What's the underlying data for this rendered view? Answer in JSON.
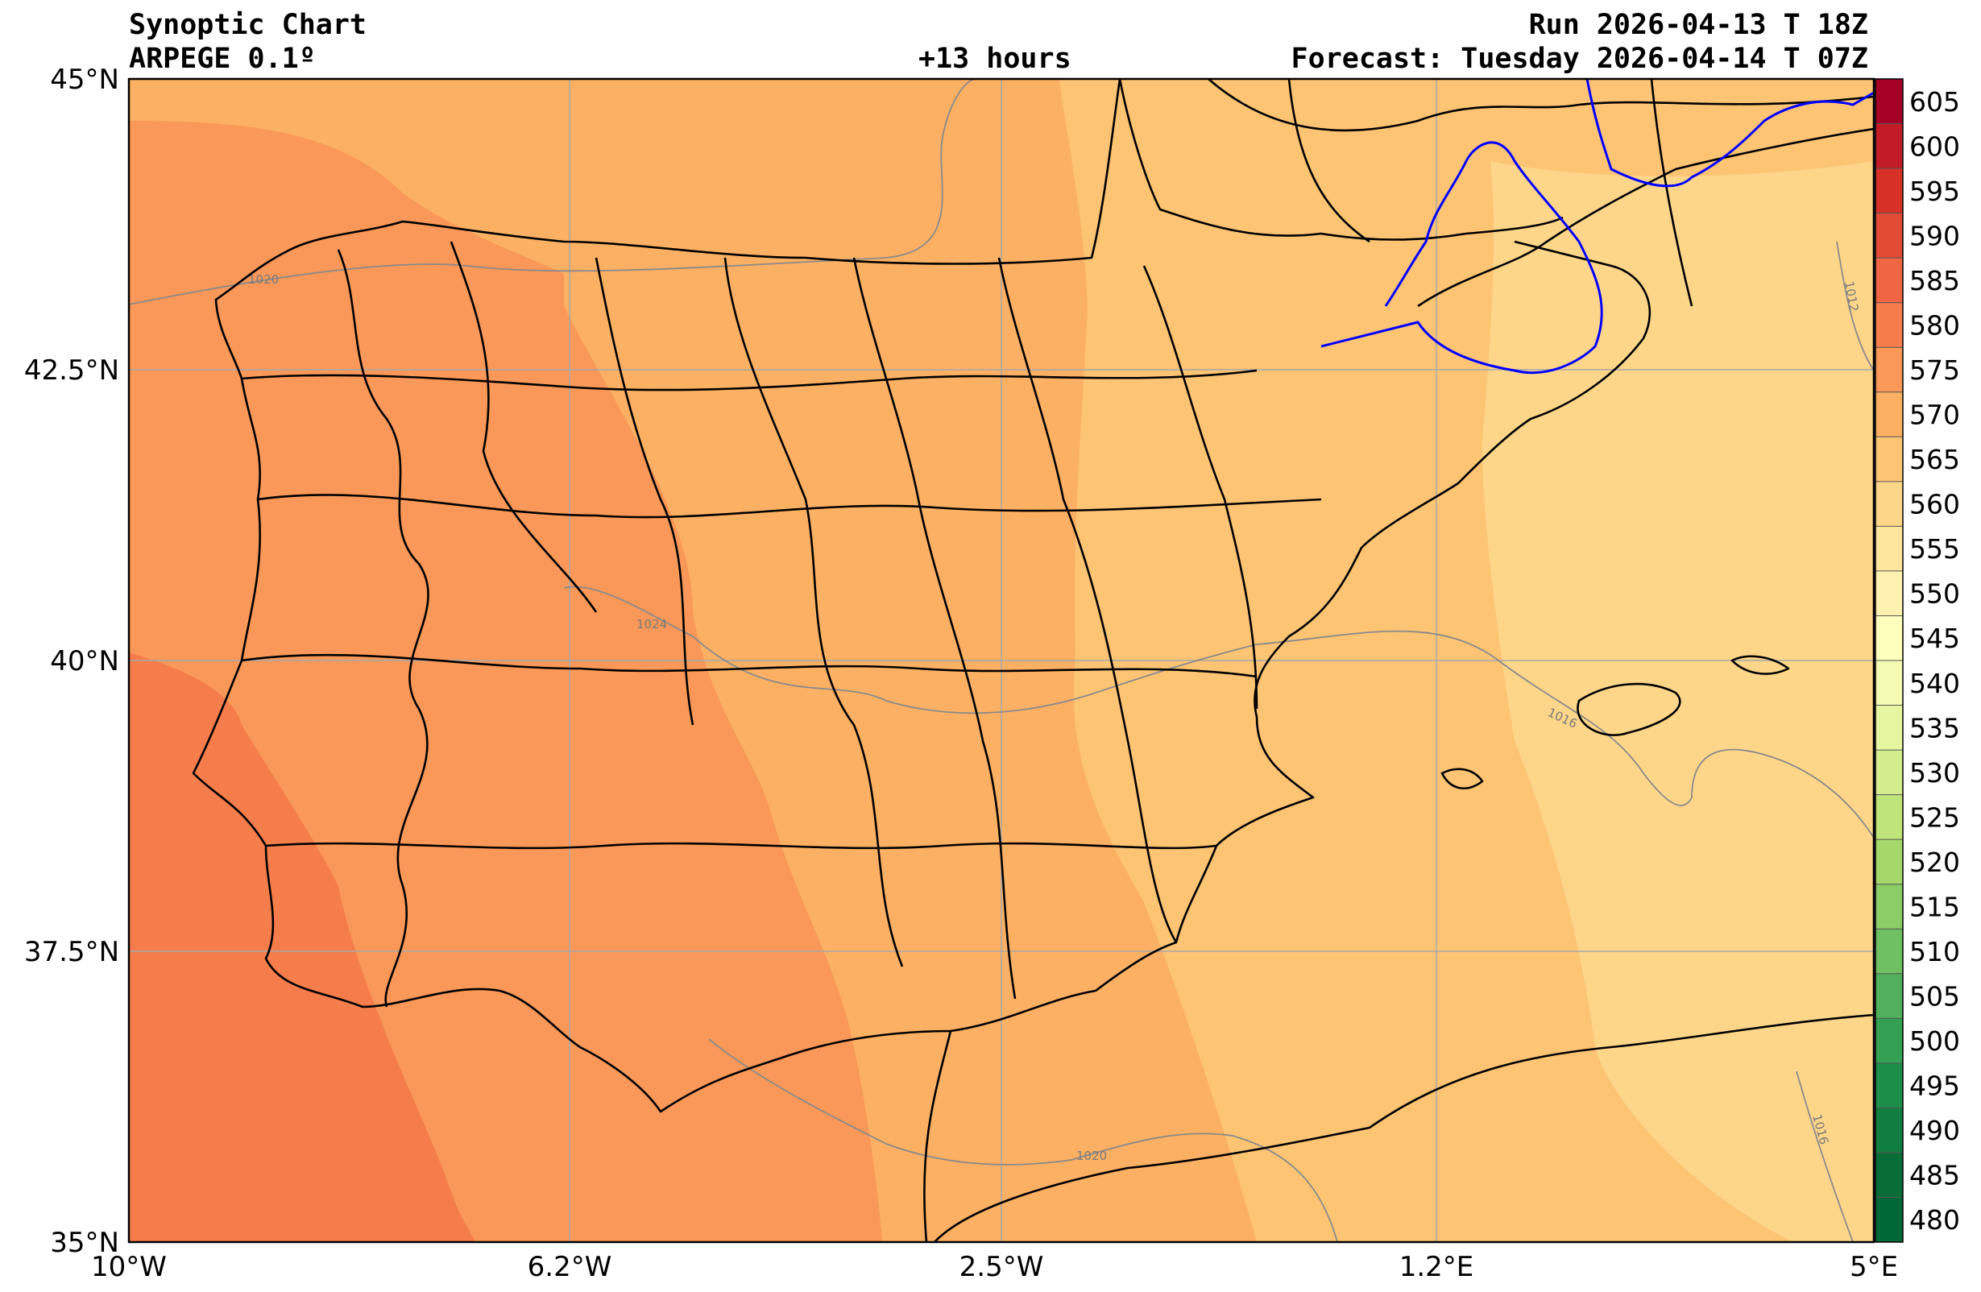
{
  "header": {
    "title": "Synoptic Chart",
    "model": "ARPEGE 0.1º",
    "lead_time": "+13 hours",
    "run": "Run 2026-04-13 T 18Z",
    "forecast": "Forecast: Tuesday 2026-04-14 T 07Z"
  },
  "map": {
    "lat_labels": [
      "45°N",
      "42.5°N",
      "40°N",
      "37.5°N",
      "35°N"
    ],
    "lon_labels": [
      "10°W",
      "6.2°W",
      "2.5°W",
      "1.2°E",
      "5°E"
    ],
    "isobar_labels": [
      "1020",
      "1024",
      "1016",
      "1012",
      "1016",
      "1020"
    ]
  },
  "colorbar": {
    "levels": [
      "605",
      "600",
      "595",
      "590",
      "585",
      "580",
      "575",
      "570",
      "565",
      "560",
      "555",
      "550",
      "545",
      "540",
      "535",
      "530",
      "525",
      "520",
      "515",
      "510",
      "505",
      "500",
      "495",
      "490",
      "485",
      "480"
    ],
    "colors": [
      "#a50026",
      "#c21c27",
      "#d73027",
      "#e34a33",
      "#f06643",
      "#f57d4b",
      "#f99858",
      "#fcb063",
      "#fdc474",
      "#fed689",
      "#fee59c",
      "#fff2b0",
      "#fefebd",
      "#f4fab2",
      "#e6f5a0",
      "#d3ed8e",
      "#bfe47a",
      "#a5d86a",
      "#8ccd66",
      "#6fbf63",
      "#51b05c",
      "#33a053",
      "#1c8e49",
      "#0f7e40",
      "#086d37",
      "#006837"
    ],
    "accent_contour": "#0000ff"
  }
}
